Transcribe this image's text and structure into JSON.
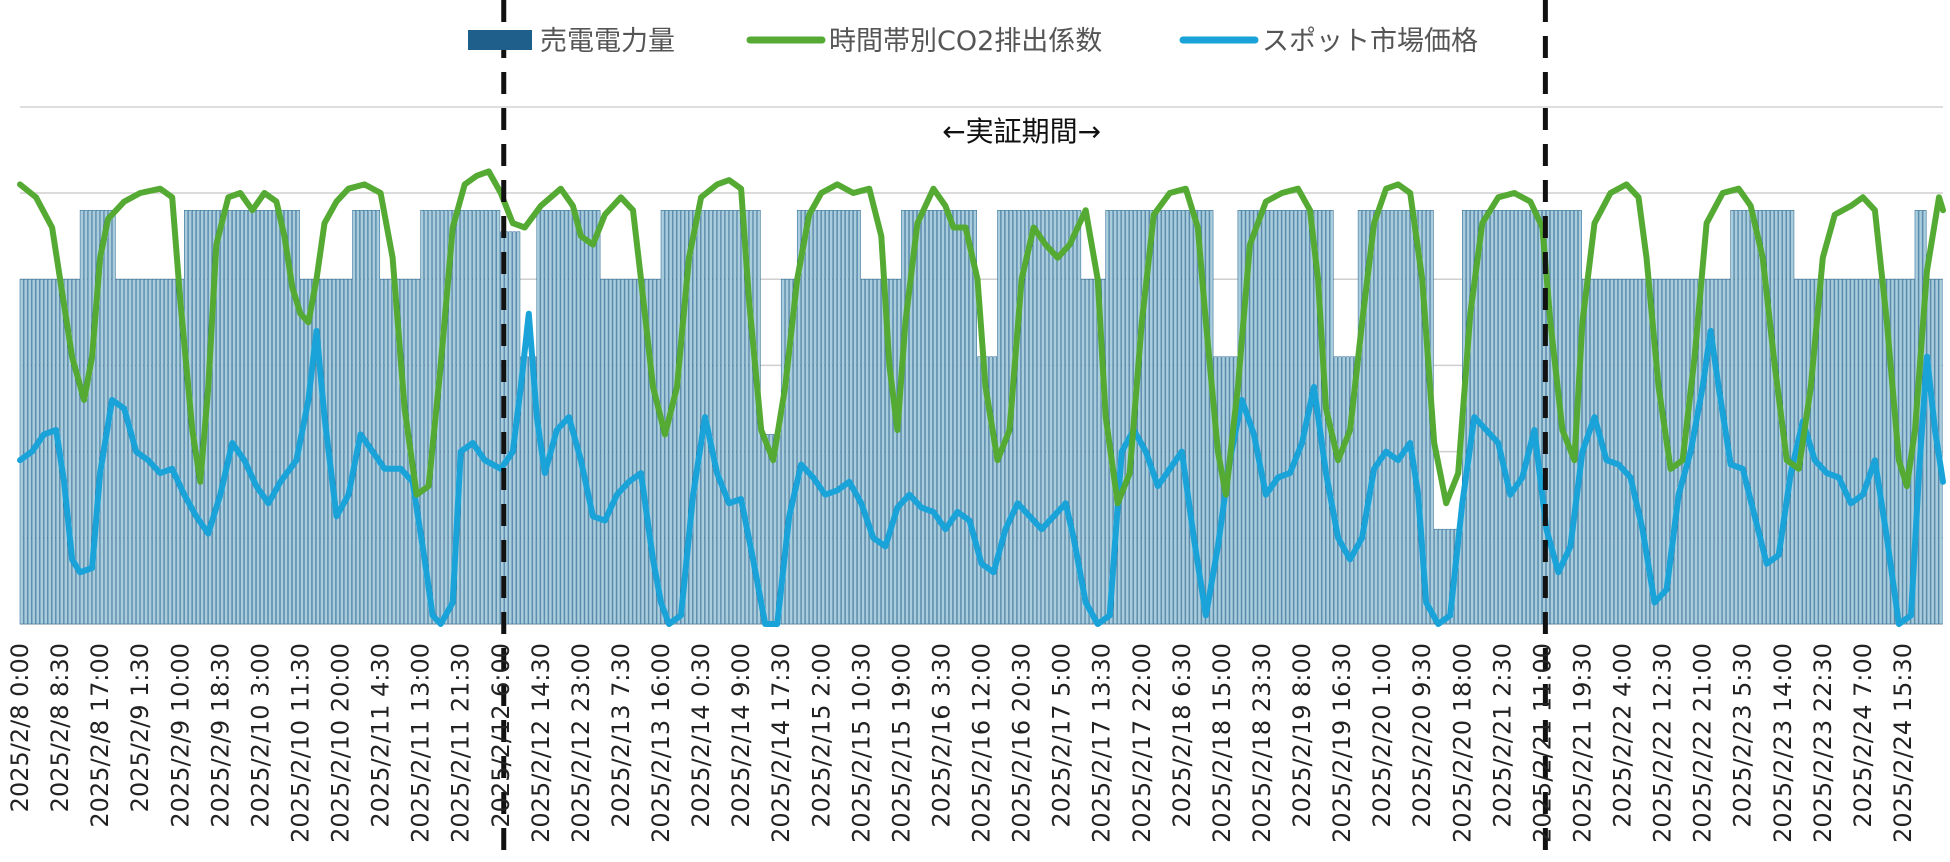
{
  "chart_data": {
    "type": "bar+line",
    "title": "",
    "xlabel": "",
    "ylabel": "",
    "grid": true,
    "legend_position": "top-center",
    "legend": [
      {
        "key": "sales",
        "label": "売電電力量",
        "symbol": "box",
        "color": "#1f5f8b"
      },
      {
        "key": "co2",
        "label": "時間帯別CO2排出係数",
        "symbol": "line",
        "color": "#55aa33"
      },
      {
        "key": "price",
        "label": "スポット市場価格",
        "symbol": "line",
        "color": "#1aa3d8"
      }
    ],
    "annotation": {
      "text": "←実証期間→",
      "start_tick": 12,
      "end_tick": 38
    },
    "x_tick_labels": [
      "2025/2/8 0:00",
      "2025/2/8 8:30",
      "2025/2/8 17:00",
      "2025/2/9 1:30",
      "2025/2/9 10:00",
      "2025/2/9 18:30",
      "2025/2/10 3:00",
      "2025/2/10 11:30",
      "2025/2/10 20:00",
      "2025/2/11 4:30",
      "2025/2/11 13:00",
      "2025/2/11 21:30",
      "2025/2/12 6:00",
      "2025/2/12 14:30",
      "2025/2/12 23:00",
      "2025/2/13 7:30",
      "2025/2/13 16:00",
      "2025/2/14 0:30",
      "2025/2/14 9:00",
      "2025/2/14 17:30",
      "2025/2/15 2:00",
      "2025/2/15 10:30",
      "2025/2/15 19:00",
      "2025/2/16 3:30",
      "2025/2/16 12:00",
      "2025/2/16 20:30",
      "2025/2/17 5:00",
      "2025/2/17 13:30",
      "2025/2/17 22:00",
      "2025/2/18 6:30",
      "2025/2/18 15:00",
      "2025/2/18 23:30",
      "2025/2/19 8:00",
      "2025/2/19 16:30",
      "2025/2/20 1:00",
      "2025/2/20 9:30",
      "2025/2/20 18:00",
      "2025/2/21 2:30",
      "2025/2/21 11:00",
      "2025/2/21 19:30",
      "2025/2/22 4:00",
      "2025/2/22 12:30",
      "2025/2/22 21:00",
      "2025/2/23 5:30",
      "2025/2/23 14:00",
      "2025/2/23 22:30",
      "2025/2/24 7:00",
      "2025/2/24 15:30"
    ],
    "level_scale": "0 = bottom gridline, 1 = top gridline (no y-axis tick labels shown)",
    "sales_segments": [
      {
        "start": 0,
        "end": 1.5,
        "level": 0.8
      },
      {
        "start": 1.5,
        "end": 2.4,
        "level": 0.96
      },
      {
        "start": 2.4,
        "end": 4.1,
        "level": 0.8
      },
      {
        "start": 4.1,
        "end": 7.0,
        "level": 0.96
      },
      {
        "start": 7.0,
        "end": 8.3,
        "level": 0.8
      },
      {
        "start": 8.3,
        "end": 9.0,
        "level": 0.96
      },
      {
        "start": 9.0,
        "end": 10.0,
        "level": 0.8
      },
      {
        "start": 10.0,
        "end": 12.0,
        "level": 0.96
      },
      {
        "start": 12.0,
        "end": 12.5,
        "level": 0.91
      },
      {
        "start": 12.5,
        "end": 12.9,
        "level": 0.62
      },
      {
        "start": 12.9,
        "end": 14.5,
        "level": 0.96
      },
      {
        "start": 14.5,
        "end": 16.0,
        "level": 0.8
      },
      {
        "start": 16.0,
        "end": 18.5,
        "level": 0.96
      },
      {
        "start": 18.5,
        "end": 19.0,
        "level": 0.44
      },
      {
        "start": 19.0,
        "end": 19.4,
        "level": 0.8
      },
      {
        "start": 19.4,
        "end": 21.0,
        "level": 0.96
      },
      {
        "start": 21.0,
        "end": 22.0,
        "level": 0.8
      },
      {
        "start": 22.0,
        "end": 23.9,
        "level": 0.96
      },
      {
        "start": 23.9,
        "end": 24.4,
        "level": 0.62
      },
      {
        "start": 24.4,
        "end": 26.5,
        "level": 0.96
      },
      {
        "start": 26.5,
        "end": 27.1,
        "level": 0.8
      },
      {
        "start": 27.1,
        "end": 29.8,
        "level": 0.96
      },
      {
        "start": 29.8,
        "end": 30.4,
        "level": 0.62
      },
      {
        "start": 30.4,
        "end": 32.8,
        "level": 0.96
      },
      {
        "start": 32.8,
        "end": 33.4,
        "level": 0.62
      },
      {
        "start": 33.4,
        "end": 35.3,
        "level": 0.96
      },
      {
        "start": 35.3,
        "end": 36.0,
        "level": 0.22
      },
      {
        "start": 36.0,
        "end": 39.0,
        "level": 0.96
      },
      {
        "start": 39.0,
        "end": 42.7,
        "level": 0.8
      },
      {
        "start": 42.7,
        "end": 44.3,
        "level": 0.96
      },
      {
        "start": 44.3,
        "end": 47.3,
        "level": 0.8
      },
      {
        "start": 47.3,
        "end": 47.6,
        "level": 0.96
      },
      {
        "start": 47.6,
        "end": 48.0,
        "level": 0.8
      }
    ],
    "co2_points": [
      [
        0,
        1.02
      ],
      [
        0.4,
        0.99
      ],
      [
        0.8,
        0.92
      ],
      [
        1.1,
        0.74
      ],
      [
        1.3,
        0.62
      ],
      [
        1.6,
        0.52
      ],
      [
        1.8,
        0.62
      ],
      [
        2.0,
        0.85
      ],
      [
        2.2,
        0.94
      ],
      [
        2.6,
        0.98
      ],
      [
        3.0,
        1.0
      ],
      [
        3.5,
        1.01
      ],
      [
        3.8,
        0.99
      ],
      [
        4.0,
        0.75
      ],
      [
        4.3,
        0.45
      ],
      [
        4.5,
        0.33
      ],
      [
        4.7,
        0.55
      ],
      [
        4.9,
        0.88
      ],
      [
        5.2,
        0.99
      ],
      [
        5.5,
        1.0
      ],
      [
        5.8,
        0.96
      ],
      [
        6.1,
        1.0
      ],
      [
        6.4,
        0.98
      ],
      [
        6.6,
        0.9
      ],
      [
        6.8,
        0.78
      ],
      [
        7.0,
        0.72
      ],
      [
        7.2,
        0.7
      ],
      [
        7.4,
        0.8
      ],
      [
        7.6,
        0.93
      ],
      [
        7.9,
        0.98
      ],
      [
        8.2,
        1.01
      ],
      [
        8.6,
        1.02
      ],
      [
        9.0,
        1.0
      ],
      [
        9.3,
        0.85
      ],
      [
        9.6,
        0.5
      ],
      [
        9.9,
        0.3
      ],
      [
        10.2,
        0.32
      ],
      [
        10.5,
        0.6
      ],
      [
        10.8,
        0.92
      ],
      [
        11.1,
        1.02
      ],
      [
        11.4,
        1.04
      ],
      [
        11.7,
        1.05
      ],
      [
        12.0,
        1.0
      ],
      [
        12.3,
        0.93
      ],
      [
        12.6,
        0.92
      ],
      [
        13.0,
        0.97
      ],
      [
        13.5,
        1.01
      ],
      [
        13.8,
        0.97
      ],
      [
        14.0,
        0.9
      ],
      [
        14.3,
        0.88
      ],
      [
        14.6,
        0.95
      ],
      [
        15.0,
        0.99
      ],
      [
        15.3,
        0.96
      ],
      [
        15.5,
        0.8
      ],
      [
        15.8,
        0.55
      ],
      [
        16.1,
        0.44
      ],
      [
        16.4,
        0.55
      ],
      [
        16.7,
        0.85
      ],
      [
        17.0,
        0.99
      ],
      [
        17.4,
        1.02
      ],
      [
        17.7,
        1.03
      ],
      [
        18.0,
        1.01
      ],
      [
        18.2,
        0.75
      ],
      [
        18.5,
        0.45
      ],
      [
        18.8,
        0.38
      ],
      [
        19.1,
        0.55
      ],
      [
        19.4,
        0.8
      ],
      [
        19.7,
        0.95
      ],
      [
        20.0,
        1.0
      ],
      [
        20.4,
        1.02
      ],
      [
        20.8,
        1.0
      ],
      [
        21.2,
        1.01
      ],
      [
        21.5,
        0.9
      ],
      [
        21.7,
        0.6
      ],
      [
        21.9,
        0.45
      ],
      [
        22.1,
        0.7
      ],
      [
        22.4,
        0.93
      ],
      [
        22.8,
        1.01
      ],
      [
        23.1,
        0.97
      ],
      [
        23.3,
        0.92
      ],
      [
        23.6,
        0.92
      ],
      [
        23.9,
        0.8
      ],
      [
        24.1,
        0.55
      ],
      [
        24.4,
        0.38
      ],
      [
        24.7,
        0.45
      ],
      [
        25.0,
        0.8
      ],
      [
        25.3,
        0.92
      ],
      [
        25.6,
        0.88
      ],
      [
        25.9,
        0.85
      ],
      [
        26.2,
        0.88
      ],
      [
        26.6,
        0.96
      ],
      [
        26.9,
        0.8
      ],
      [
        27.1,
        0.48
      ],
      [
        27.4,
        0.28
      ],
      [
        27.7,
        0.35
      ],
      [
        28.0,
        0.7
      ],
      [
        28.3,
        0.95
      ],
      [
        28.7,
        1.0
      ],
      [
        29.1,
        1.01
      ],
      [
        29.4,
        0.92
      ],
      [
        29.6,
        0.7
      ],
      [
        29.9,
        0.4
      ],
      [
        30.1,
        0.3
      ],
      [
        30.4,
        0.55
      ],
      [
        30.7,
        0.88
      ],
      [
        31.1,
        0.98
      ],
      [
        31.5,
        1.0
      ],
      [
        31.9,
        1.01
      ],
      [
        32.2,
        0.96
      ],
      [
        32.4,
        0.8
      ],
      [
        32.6,
        0.5
      ],
      [
        32.9,
        0.38
      ],
      [
        33.2,
        0.45
      ],
      [
        33.5,
        0.7
      ],
      [
        33.8,
        0.93
      ],
      [
        34.1,
        1.01
      ],
      [
        34.4,
        1.02
      ],
      [
        34.7,
        1.0
      ],
      [
        35.0,
        0.8
      ],
      [
        35.3,
        0.42
      ],
      [
        35.6,
        0.28
      ],
      [
        35.9,
        0.35
      ],
      [
        36.2,
        0.72
      ],
      [
        36.5,
        0.93
      ],
      [
        36.9,
        0.99
      ],
      [
        37.3,
        1.0
      ],
      [
        37.7,
        0.98
      ],
      [
        38.0,
        0.92
      ],
      [
        38.2,
        0.7
      ],
      [
        38.5,
        0.45
      ],
      [
        38.8,
        0.38
      ],
      [
        39.0,
        0.7
      ],
      [
        39.3,
        0.93
      ],
      [
        39.7,
        1.0
      ],
      [
        40.1,
        1.02
      ],
      [
        40.4,
        0.99
      ],
      [
        40.6,
        0.85
      ],
      [
        40.9,
        0.55
      ],
      [
        41.2,
        0.36
      ],
      [
        41.5,
        0.38
      ],
      [
        41.8,
        0.62
      ],
      [
        42.1,
        0.93
      ],
      [
        42.5,
        1.0
      ],
      [
        42.9,
        1.01
      ],
      [
        43.2,
        0.97
      ],
      [
        43.5,
        0.85
      ],
      [
        43.8,
        0.6
      ],
      [
        44.1,
        0.38
      ],
      [
        44.4,
        0.36
      ],
      [
        44.7,
        0.55
      ],
      [
        45.0,
        0.85
      ],
      [
        45.3,
        0.95
      ],
      [
        45.7,
        0.97
      ],
      [
        46.0,
        0.99
      ],
      [
        46.3,
        0.96
      ],
      [
        46.6,
        0.7
      ],
      [
        46.9,
        0.38
      ],
      [
        47.1,
        0.32
      ],
      [
        47.3,
        0.45
      ],
      [
        47.6,
        0.82
      ],
      [
        47.9,
        0.99
      ],
      [
        48.0,
        0.96
      ]
    ],
    "price_points": [
      [
        0,
        0.38
      ],
      [
        0.3,
        0.4
      ],
      [
        0.6,
        0.44
      ],
      [
        0.9,
        0.45
      ],
      [
        1.1,
        0.33
      ],
      [
        1.3,
        0.15
      ],
      [
        1.5,
        0.12
      ],
      [
        1.8,
        0.13
      ],
      [
        2.0,
        0.35
      ],
      [
        2.3,
        0.52
      ],
      [
        2.6,
        0.5
      ],
      [
        2.9,
        0.4
      ],
      [
        3.2,
        0.38
      ],
      [
        3.5,
        0.35
      ],
      [
        3.8,
        0.36
      ],
      [
        4.1,
        0.3
      ],
      [
        4.4,
        0.25
      ],
      [
        4.7,
        0.21
      ],
      [
        5.0,
        0.3
      ],
      [
        5.3,
        0.42
      ],
      [
        5.6,
        0.38
      ],
      [
        5.9,
        0.32
      ],
      [
        6.2,
        0.28
      ],
      [
        6.5,
        0.33
      ],
      [
        6.9,
        0.38
      ],
      [
        7.2,
        0.52
      ],
      [
        7.4,
        0.68
      ],
      [
        7.6,
        0.48
      ],
      [
        7.9,
        0.25
      ],
      [
        8.2,
        0.3
      ],
      [
        8.5,
        0.44
      ],
      [
        8.8,
        0.4
      ],
      [
        9.1,
        0.36
      ],
      [
        9.5,
        0.36
      ],
      [
        9.8,
        0.33
      ],
      [
        10.1,
        0.15
      ],
      [
        10.3,
        0.02
      ],
      [
        10.5,
        0.0
      ],
      [
        10.8,
        0.05
      ],
      [
        11.0,
        0.4
      ],
      [
        11.3,
        0.42
      ],
      [
        11.6,
        0.38
      ],
      [
        12.0,
        0.36
      ],
      [
        12.3,
        0.4
      ],
      [
        12.5,
        0.55
      ],
      [
        12.7,
        0.72
      ],
      [
        12.9,
        0.48
      ],
      [
        13.1,
        0.35
      ],
      [
        13.4,
        0.45
      ],
      [
        13.7,
        0.48
      ],
      [
        14.0,
        0.38
      ],
      [
        14.3,
        0.25
      ],
      [
        14.6,
        0.24
      ],
      [
        14.9,
        0.3
      ],
      [
        15.2,
        0.33
      ],
      [
        15.5,
        0.35
      ],
      [
        15.8,
        0.15
      ],
      [
        16.0,
        0.05
      ],
      [
        16.2,
        0.0
      ],
      [
        16.5,
        0.02
      ],
      [
        16.8,
        0.3
      ],
      [
        17.1,
        0.48
      ],
      [
        17.4,
        0.35
      ],
      [
        17.7,
        0.28
      ],
      [
        18.0,
        0.29
      ],
      [
        18.3,
        0.15
      ],
      [
        18.6,
        0.0
      ],
      [
        18.9,
        0.0
      ],
      [
        19.2,
        0.25
      ],
      [
        19.5,
        0.37
      ],
      [
        19.8,
        0.34
      ],
      [
        20.1,
        0.3
      ],
      [
        20.4,
        0.31
      ],
      [
        20.7,
        0.33
      ],
      [
        21.0,
        0.28
      ],
      [
        21.3,
        0.2
      ],
      [
        21.6,
        0.18
      ],
      [
        21.9,
        0.27
      ],
      [
        22.2,
        0.3
      ],
      [
        22.5,
        0.27
      ],
      [
        22.8,
        0.26
      ],
      [
        23.1,
        0.22
      ],
      [
        23.4,
        0.26
      ],
      [
        23.7,
        0.24
      ],
      [
        24.0,
        0.14
      ],
      [
        24.3,
        0.12
      ],
      [
        24.6,
        0.22
      ],
      [
        24.9,
        0.28
      ],
      [
        25.2,
        0.25
      ],
      [
        25.5,
        0.22
      ],
      [
        25.8,
        0.25
      ],
      [
        26.1,
        0.28
      ],
      [
        26.3,
        0.2
      ],
      [
        26.6,
        0.05
      ],
      [
        26.9,
        0.0
      ],
      [
        27.2,
        0.02
      ],
      [
        27.5,
        0.4
      ],
      [
        27.8,
        0.45
      ],
      [
        28.1,
        0.4
      ],
      [
        28.4,
        0.32
      ],
      [
        28.7,
        0.36
      ],
      [
        29.0,
        0.4
      ],
      [
        29.3,
        0.2
      ],
      [
        29.6,
        0.02
      ],
      [
        29.9,
        0.18
      ],
      [
        30.2,
        0.38
      ],
      [
        30.5,
        0.52
      ],
      [
        30.8,
        0.44
      ],
      [
        31.1,
        0.3
      ],
      [
        31.4,
        0.34
      ],
      [
        31.7,
        0.35
      ],
      [
        32.0,
        0.42
      ],
      [
        32.3,
        0.55
      ],
      [
        32.6,
        0.35
      ],
      [
        32.9,
        0.2
      ],
      [
        33.2,
        0.15
      ],
      [
        33.5,
        0.2
      ],
      [
        33.8,
        0.36
      ],
      [
        34.1,
        0.4
      ],
      [
        34.4,
        0.38
      ],
      [
        34.7,
        0.42
      ],
      [
        34.9,
        0.3
      ],
      [
        35.1,
        0.05
      ],
      [
        35.4,
        0.0
      ],
      [
        35.7,
        0.02
      ],
      [
        36.0,
        0.28
      ],
      [
        36.3,
        0.48
      ],
      [
        36.6,
        0.45
      ],
      [
        36.9,
        0.42
      ],
      [
        37.2,
        0.3
      ],
      [
        37.5,
        0.34
      ],
      [
        37.8,
        0.45
      ],
      [
        38.1,
        0.22
      ],
      [
        38.4,
        0.12
      ],
      [
        38.7,
        0.18
      ],
      [
        39.0,
        0.4
      ],
      [
        39.3,
        0.48
      ],
      [
        39.6,
        0.38
      ],
      [
        39.9,
        0.37
      ],
      [
        40.2,
        0.34
      ],
      [
        40.5,
        0.22
      ],
      [
        40.8,
        0.05
      ],
      [
        41.1,
        0.08
      ],
      [
        41.4,
        0.3
      ],
      [
        41.7,
        0.4
      ],
      [
        42.0,
        0.55
      ],
      [
        42.2,
        0.68
      ],
      [
        42.4,
        0.55
      ],
      [
        42.7,
        0.37
      ],
      [
        43.0,
        0.36
      ],
      [
        43.3,
        0.25
      ],
      [
        43.6,
        0.14
      ],
      [
        43.9,
        0.16
      ],
      [
        44.2,
        0.35
      ],
      [
        44.5,
        0.47
      ],
      [
        44.8,
        0.38
      ],
      [
        45.1,
        0.35
      ],
      [
        45.4,
        0.34
      ],
      [
        45.7,
        0.28
      ],
      [
        46.0,
        0.3
      ],
      [
        46.3,
        0.38
      ],
      [
        46.6,
        0.2
      ],
      [
        46.9,
        0.0
      ],
      [
        47.2,
        0.02
      ],
      [
        47.4,
        0.35
      ],
      [
        47.6,
        0.62
      ],
      [
        47.8,
        0.45
      ],
      [
        48.0,
        0.33
      ]
    ]
  }
}
